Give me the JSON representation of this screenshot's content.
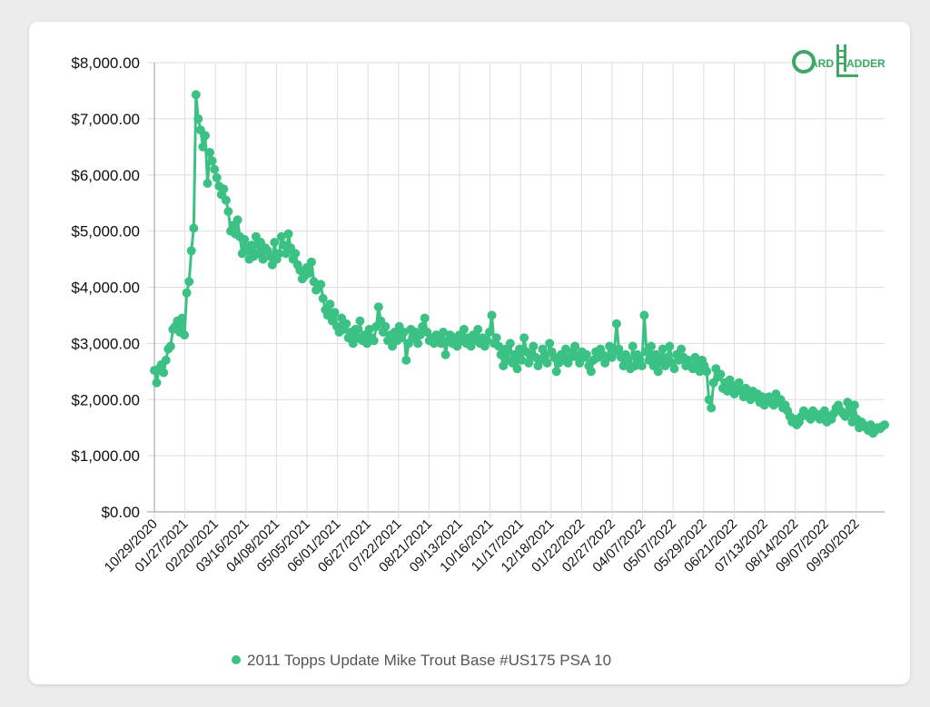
{
  "logo": {
    "text_c": "C",
    "text_ard": "ARD",
    "text_l": "L",
    "text_adder": "ADDER"
  },
  "chart_data": {
    "type": "line",
    "title": "",
    "xlabel": "",
    "ylabel": "",
    "ylim": [
      0,
      8000
    ],
    "yticks": [
      0,
      1000,
      2000,
      3000,
      4000,
      5000,
      6000,
      7000,
      8000
    ],
    "ytick_labels": [
      "$0.00",
      "$1,000.00",
      "$2,000.00",
      "$3,000.00",
      "$4,000.00",
      "$5,000.00",
      "$6,000.00",
      "$7,000.00",
      "$8,000.00"
    ],
    "xtick_labels": [
      "10/29/2020",
      "01/27/2021",
      "02/20/2021",
      "03/16/2021",
      "04/08/2021",
      "05/05/2021",
      "06/01/2021",
      "06/27/2021",
      "07/22/2021",
      "08/21/2021",
      "09/13/2021",
      "10/16/2021",
      "11/17/2021",
      "12/18/2021",
      "01/22/2022",
      "02/27/2022",
      "04/07/2022",
      "05/07/2022",
      "05/29/2022",
      "06/21/2022",
      "07/13/2022",
      "08/14/2022",
      "09/07/2022",
      "09/30/2022"
    ],
    "grid": true,
    "legend_position": "bottom",
    "color": "#3cc184",
    "series": [
      {
        "name": "2011 Topps Update Mike Trout Base #US175 PSA 10",
        "values": [
          2520,
          2300,
          2550,
          2620,
          2480,
          2700,
          2900,
          2950,
          3250,
          3300,
          3400,
          3200,
          3450,
          3150,
          3900,
          4100,
          4650,
          5050,
          7430,
          7000,
          6800,
          6500,
          6700,
          5850,
          6400,
          6250,
          6100,
          5950,
          5800,
          5650,
          5750,
          5550,
          5350,
          5000,
          5100,
          4950,
          5200,
          4900,
          4600,
          4850,
          4700,
          4500,
          4750,
          4550,
          4900,
          4600,
          4800,
          4500,
          4700,
          4650,
          4550,
          4400,
          4800,
          4500,
          4600,
          4900,
          4750,
          4600,
          4950,
          4700,
          4500,
          4600,
          4400,
          4300,
          4150,
          4200,
          4350,
          4250,
          4450,
          4100,
          3950,
          4000,
          4050,
          3800,
          3600,
          3500,
          3700,
          3400,
          3550,
          3300,
          3200,
          3450,
          3250,
          3350,
          3100,
          3200,
          3000,
          3250,
          3100,
          3400,
          3050,
          3150,
          3000,
          3250,
          3100,
          3050,
          3300,
          3650,
          3400,
          3200,
          3300,
          3050,
          3150,
          2950,
          3200,
          3050,
          3300,
          3100,
          3200,
          2700,
          3000,
          3250,
          3100,
          3200,
          3000,
          3150,
          3300,
          3450,
          3200,
          3050,
          3100,
          3000,
          3150,
          3100,
          3000,
          3200,
          2800,
          3050,
          3150,
          3000,
          3100,
          2950,
          3150,
          3050,
          3250,
          3000,
          3100,
          2950,
          3150,
          3050,
          3250,
          3000,
          3100,
          2950,
          3050,
          3200,
          3500,
          3000,
          3100,
          2950,
          2800,
          2600,
          2900,
          2700,
          3000,
          2650,
          2800,
          2550,
          2900,
          2700,
          3100,
          2850,
          2650,
          2800,
          2950,
          2750,
          2600,
          2700,
          2900,
          2800,
          2650,
          3000,
          2850,
          2750,
          2500,
          2650,
          2800,
          2700,
          2900,
          2650,
          2750,
          2850,
          2950,
          2750,
          2650,
          2850,
          2750,
          2800,
          2600,
          2500,
          2700,
          2850,
          2750,
          2900,
          2800,
          2650,
          2750,
          2950,
          2750,
          2850,
          3350,
          2900,
          2750,
          2600,
          2800,
          2700,
          2550,
          2950,
          2600,
          2800,
          2700,
          2600,
          3500,
          2850,
          2700,
          2950,
          2600,
          2800,
          2500,
          2700,
          2900,
          2600,
          2750,
          2950,
          2650,
          2550,
          2800,
          2700,
          2900,
          2750,
          2600,
          2700,
          2600,
          2550,
          2750,
          2650,
          2500,
          2700,
          2600,
          2500,
          2000,
          1850,
          2300,
          2550,
          2400,
          2450,
          2200,
          2300,
          2150,
          2350,
          2250,
          2100,
          2200,
          2300,
          2150,
          2050,
          2200,
          2100,
          2000,
          2150,
          2050,
          2100,
          1950,
          2050,
          1900,
          2000,
          2050,
          1950,
          1900,
          2100,
          1950,
          2000,
          1850,
          1900,
          1800,
          1700,
          1600,
          1650,
          1550,
          1600,
          1700,
          1800,
          1750,
          1700,
          1650,
          1800,
          1750,
          1700,
          1650,
          1750,
          1800,
          1600,
          1700,
          1650,
          1750,
          1850,
          1900,
          1800,
          1750,
          1700,
          1950,
          1800,
          1600,
          1900,
          1650,
          1500,
          1600,
          1550,
          1500,
          1450,
          1550,
          1400,
          1450,
          1500,
          1480,
          1520,
          1550
        ]
      }
    ]
  }
}
